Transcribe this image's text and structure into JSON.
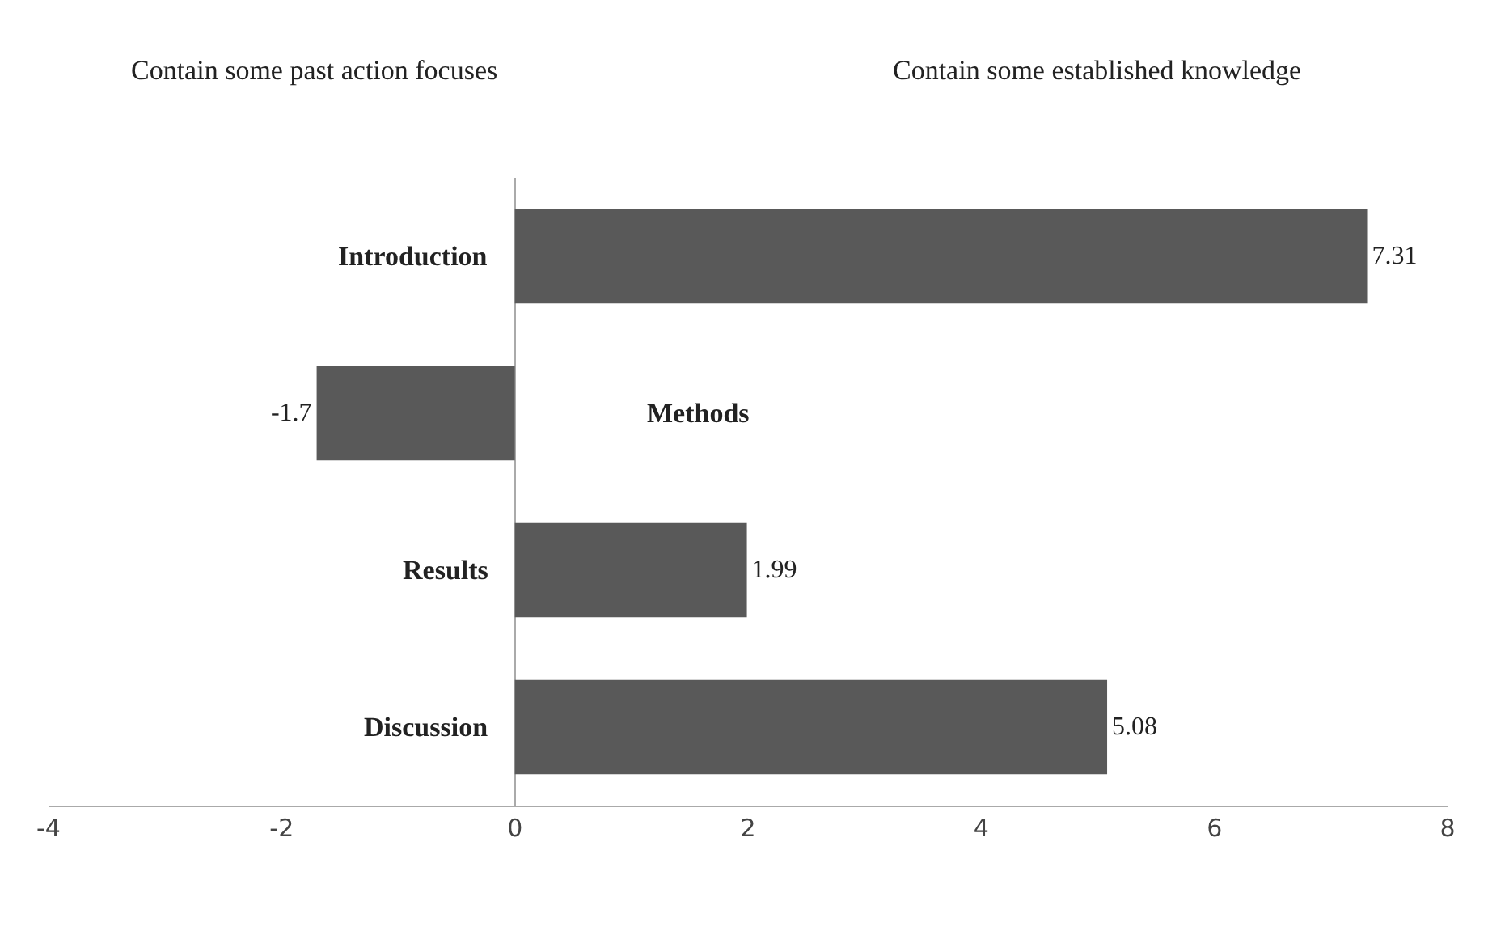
{
  "chart_data": {
    "type": "bar",
    "orientation": "horizontal",
    "categories": [
      "Introduction",
      "Methods",
      "Results",
      "Discussion"
    ],
    "values": [
      7.31,
      -1.7,
      1.99,
      5.08
    ],
    "color": "#595959",
    "data_labels": true,
    "xlim": [
      -4,
      8
    ],
    "xticks": [
      -4,
      -2,
      0,
      2,
      4,
      6,
      8
    ],
    "annotations": [
      "Contain some past action focuses",
      "Contain some established knowledge"
    ]
  }
}
